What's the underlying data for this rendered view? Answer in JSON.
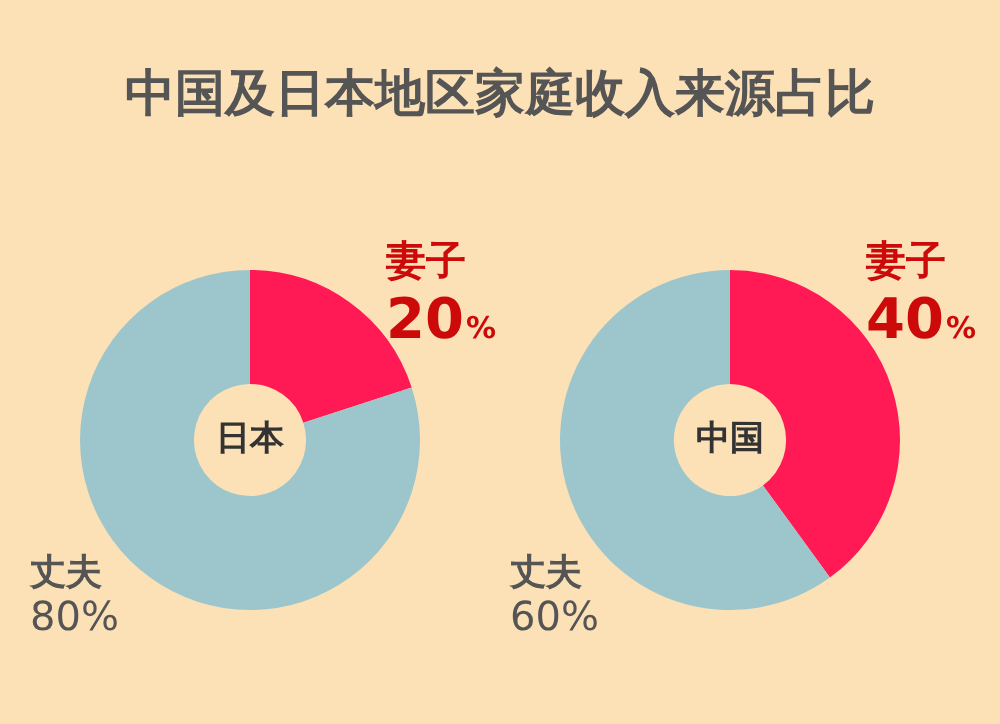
{
  "chart_data": [
    {
      "type": "donut",
      "title": "中国及日本地区家庭收入来源占比",
      "categories": [
        "妻子",
        "丈夫"
      ],
      "values": [
        20,
        80
      ],
      "colors": [
        "#ff1a55",
        "#9cc6cc"
      ],
      "value_labels": [
        "20%",
        "80%"
      ],
      "annotations": [
        "日本"
      ]
    },
    {
      "type": "donut",
      "categories": [
        "妻子",
        "丈夫"
      ],
      "values": [
        40,
        60
      ],
      "colors": [
        "#ff1a55",
        "#9cc6cc"
      ],
      "value_labels": [
        "40%",
        "60%"
      ],
      "annotations": [
        "中国"
      ]
    }
  ]
}
